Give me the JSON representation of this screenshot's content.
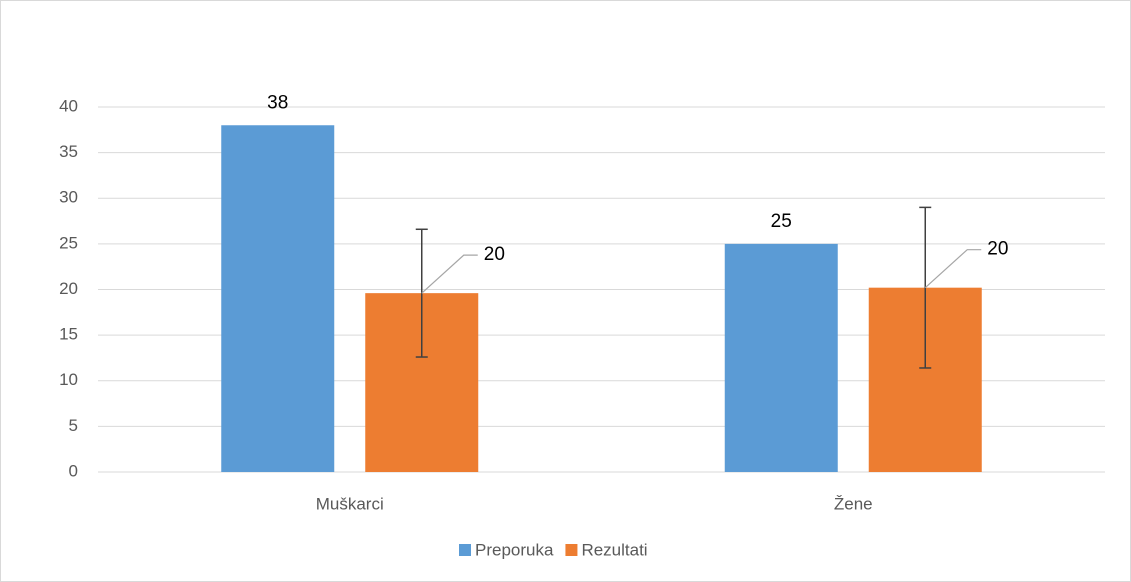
{
  "chart_data": {
    "type": "bar",
    "categories": [
      "Muškarci",
      "Žene"
    ],
    "series": [
      {
        "name": "Preporuka",
        "color": "#5b9bd5",
        "values": [
          38,
          25
        ]
      },
      {
        "name": "Rezultati",
        "color": "#ed7d31",
        "values": [
          19.6,
          20.2
        ],
        "value_labels": [
          "20",
          "20"
        ],
        "errors": [
          7,
          8.8
        ]
      }
    ],
    "ylim": [
      0,
      40
    ],
    "yticks": [
      0,
      5,
      10,
      15,
      20,
      25,
      30,
      35,
      40
    ],
    "grid": true,
    "legend": "bottom"
  }
}
